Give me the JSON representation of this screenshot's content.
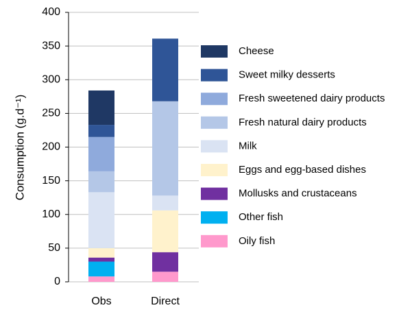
{
  "chart_data": {
    "type": "stacked_bar",
    "y_label": "Consumption (g.d⁻¹)",
    "categories": [
      "Obs",
      "Direct"
    ],
    "series": [
      {
        "name": "Oily fish",
        "color": "#ff99cc",
        "values": [
          8,
          15
        ]
      },
      {
        "name": "Other fish",
        "color": "#00b0f0",
        "values": [
          22,
          0
        ]
      },
      {
        "name": "Mollusks and crustaceans",
        "color": "#7030a0",
        "values": [
          6,
          29
        ]
      },
      {
        "name": "Eggs and egg-based dishes",
        "color": "#fff2cc",
        "values": [
          14,
          62
        ]
      },
      {
        "name": "Milk",
        "color": "#dae3f3",
        "values": [
          83,
          22
        ]
      },
      {
        "name": "Fresh natural dairy products",
        "color": "#b4c7e7",
        "values": [
          31,
          140
        ]
      },
      {
        "name": "Fresh sweetened dairy products",
        "color": "#8faadc",
        "values": [
          51,
          0
        ]
      },
      {
        "name": "Sweet milky desserts",
        "color": "#2f5597",
        "values": [
          18,
          93
        ]
      },
      {
        "name": "Cheese",
        "color": "#1f3864",
        "values": [
          51,
          0
        ]
      }
    ],
    "ylim": [
      0,
      400
    ],
    "yticks": [
      0,
      50,
      100,
      150,
      200,
      250,
      300,
      350,
      400
    ],
    "grid": true,
    "legend": "right"
  }
}
